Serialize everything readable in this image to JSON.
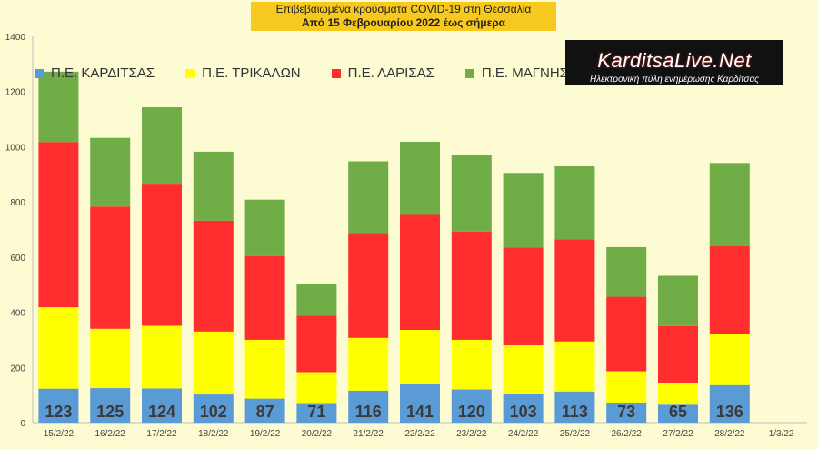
{
  "header": {
    "title": "Επιβεβαιωμένα κρούσματα COVID-19 στη Θεσσαλία",
    "subtitle": "Από 15 Φεβρουαρίου 2022 έως σήμερα"
  },
  "brand": {
    "logo_text": "KarditsaLive.Net",
    "tagline": "Ηλεκτρονική πύλη ενημέρωσης Καρδίτσας"
  },
  "colors": {
    "background": "#fdfbd2",
    "title_bg": "#f7c81e",
    "karditsa": "#5b9bd5",
    "trikala": "#ffff00",
    "larisa": "#ff2d2d",
    "magnesia": "#70ad47"
  },
  "chart_data": {
    "type": "bar",
    "stacked": true,
    "title": "Επιβεβαιωμένα κρούσματα COVID-19 στη Θεσσαλία",
    "subtitle": "Από 15 Φεβρουαρίου 2022 έως σήμερα",
    "categories": [
      "15/2/22",
      "16/2/22",
      "17/2/22",
      "18/2/22",
      "19/2/22",
      "20/2/22",
      "21/2/22",
      "22/2/22",
      "23/2/22",
      "24/2/22",
      "25/2/22",
      "26/2/22",
      "27/2/22",
      "28/2/22",
      "1/3/22"
    ],
    "series": [
      {
        "name": "Π.Ε. ΚΑΡΔΙΤΣΑΣ",
        "color": "#5b9bd5",
        "values": [
          123,
          125,
          124,
          102,
          87,
          71,
          116,
          141,
          120,
          103,
          113,
          73,
          65,
          136,
          0
        ]
      },
      {
        "name": "Π.Ε. ΤΡΙΚΑΛΩΝ",
        "color": "#ffff00",
        "values": [
          295,
          215,
          227,
          228,
          213,
          112,
          191,
          195,
          180,
          177,
          181,
          113,
          80,
          185,
          0
        ]
      },
      {
        "name": "Π.Ε. ΛΑΡΙΣΑΣ",
        "color": "#ff2d2d",
        "values": [
          599,
          443,
          515,
          402,
          303,
          205,
          380,
          420,
          392,
          355,
          370,
          270,
          205,
          318,
          0
        ]
      },
      {
        "name": "Π.Ε. ΜΑΓΝΗΣΙΑΣ",
        "color": "#70ad47",
        "values": [
          255,
          249,
          277,
          250,
          205,
          115,
          260,
          262,
          278,
          270,
          265,
          180,
          182,
          302,
          0
        ]
      }
    ],
    "data_labels_series": "Π.Ε. ΚΑΡΔΙΤΣΑΣ",
    "data_labels": [
      "123",
      "125",
      "124",
      "102",
      "87",
      "71",
      "116",
      "141",
      "120",
      "103",
      "113",
      "73",
      "65",
      "136",
      ""
    ],
    "y_ticks": [
      "0",
      "200",
      "400",
      "600",
      "800",
      "1000",
      "1200",
      "1400"
    ],
    "ylim": [
      0,
      1400
    ],
    "grid": false,
    "legend_position": "top-left"
  }
}
